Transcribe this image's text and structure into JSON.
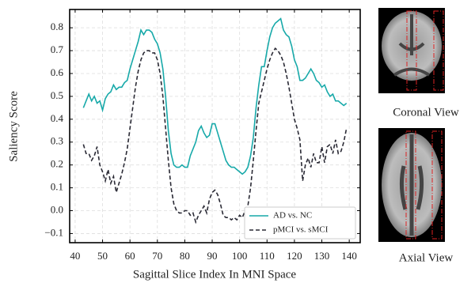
{
  "chart_data": {
    "type": "line",
    "ylabel": "Saliency Score",
    "xlabel": "Sagittal Slice Index In MNI Space",
    "x": [
      43,
      44,
      45,
      46,
      47,
      48,
      49,
      50,
      51,
      52,
      53,
      54,
      55,
      56,
      57,
      58,
      59,
      60,
      61,
      62,
      63,
      64,
      65,
      66,
      67,
      68,
      69,
      70,
      71,
      72,
      73,
      74,
      75,
      76,
      77,
      78,
      79,
      80,
      81,
      82,
      83,
      84,
      85,
      86,
      87,
      88,
      89,
      90,
      91,
      92,
      93,
      94,
      95,
      96,
      97,
      98,
      99,
      100,
      101,
      102,
      103,
      104,
      105,
      106,
      107,
      108,
      109,
      110,
      111,
      112,
      113,
      114,
      115,
      116,
      117,
      118,
      119,
      120,
      121,
      122,
      123,
      124,
      125,
      126,
      127,
      128,
      129,
      130,
      131,
      132,
      133,
      134,
      135,
      136,
      137,
      138,
      139
    ],
    "series": [
      {
        "name": "AD vs. NC",
        "color": "#17a9a9",
        "dash": false,
        "values": [
          0.45,
          0.48,
          0.51,
          0.48,
          0.5,
          0.47,
          0.48,
          0.44,
          0.49,
          0.51,
          0.52,
          0.55,
          0.53,
          0.54,
          0.54,
          0.56,
          0.57,
          0.62,
          0.66,
          0.7,
          0.74,
          0.79,
          0.77,
          0.79,
          0.79,
          0.78,
          0.75,
          0.73,
          0.69,
          0.62,
          0.5,
          0.35,
          0.25,
          0.2,
          0.19,
          0.19,
          0.2,
          0.19,
          0.19,
          0.24,
          0.27,
          0.3,
          0.35,
          0.37,
          0.34,
          0.32,
          0.33,
          0.38,
          0.38,
          0.34,
          0.3,
          0.26,
          0.22,
          0.2,
          0.19,
          0.19,
          0.18,
          0.17,
          0.16,
          0.17,
          0.19,
          0.24,
          0.32,
          0.45,
          0.55,
          0.63,
          0.63,
          0.7,
          0.76,
          0.8,
          0.82,
          0.83,
          0.84,
          0.79,
          0.77,
          0.76,
          0.72,
          0.66,
          0.63,
          0.57,
          0.57,
          0.58,
          0.6,
          0.62,
          0.6,
          0.57,
          0.56,
          0.54,
          0.55,
          0.52,
          0.5,
          0.51,
          0.48,
          0.48,
          0.47,
          0.46,
          0.47
        ]
      },
      {
        "name": "pMCI vs. sMCI",
        "color": "#2a2a35",
        "dash": true,
        "values": [
          0.29,
          0.25,
          0.25,
          0.22,
          0.24,
          0.28,
          0.2,
          0.17,
          0.13,
          0.18,
          0.12,
          0.15,
          0.08,
          0.12,
          0.16,
          0.21,
          0.27,
          0.36,
          0.45,
          0.54,
          0.61,
          0.66,
          0.69,
          0.7,
          0.7,
          0.69,
          0.69,
          0.66,
          0.6,
          0.5,
          0.36,
          0.22,
          0.1,
          0.03,
          0.0,
          -0.01,
          -0.01,
          0.0,
          0.0,
          -0.02,
          -0.01,
          -0.05,
          -0.02,
          0.0,
          0.02,
          -0.01,
          0.05,
          0.08,
          0.09,
          0.07,
          0.03,
          -0.02,
          -0.03,
          -0.03,
          -0.04,
          -0.03,
          -0.04,
          -0.02,
          -0.03,
          0.0,
          0.02,
          0.1,
          0.22,
          0.35,
          0.47,
          0.52,
          0.57,
          0.62,
          0.66,
          0.69,
          0.71,
          0.7,
          0.68,
          0.65,
          0.6,
          0.54,
          0.47,
          0.4,
          0.36,
          0.31,
          0.13,
          0.2,
          0.23,
          0.19,
          0.25,
          0.21,
          0.21,
          0.28,
          0.21,
          0.28,
          0.29,
          0.25,
          0.31,
          0.25,
          0.26,
          0.3,
          0.36
        ]
      }
    ],
    "xlim": [
      38,
      144
    ],
    "xticks": [
      40,
      50,
      60,
      70,
      80,
      90,
      100,
      110,
      120,
      130,
      140
    ],
    "ylim": [
      -0.14,
      0.88
    ],
    "yticks": [
      {
        "value": -0.1,
        "label": "−0.1"
      },
      {
        "value": 0,
        "label": "0.0"
      },
      0.1,
      0.2,
      0.3,
      0.4,
      0.5,
      0.6,
      0.7,
      0.8
    ],
    "grid": true,
    "legend": "lower right"
  },
  "side_panels": [
    {
      "label": "Coronal View"
    },
    {
      "label": "Axial View"
    }
  ]
}
